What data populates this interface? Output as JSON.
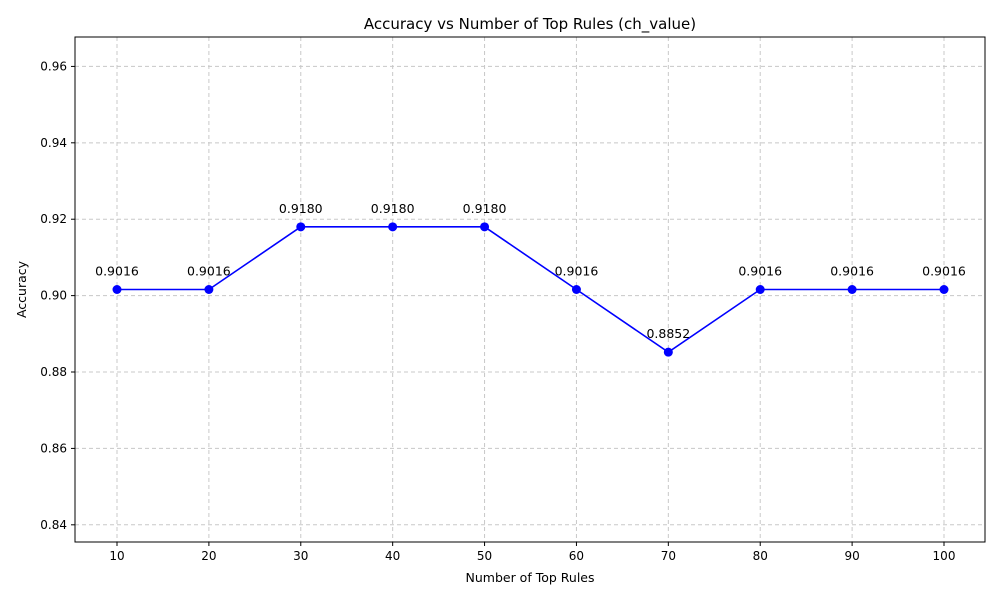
{
  "chart_data": {
    "type": "line",
    "title": "Accuracy vs Number of Top Rules (ch_value)",
    "xlabel": "Number of Top Rules",
    "ylabel": "Accuracy",
    "x": [
      10,
      20,
      30,
      40,
      50,
      60,
      70,
      80,
      90,
      100
    ],
    "x_tick_labels": [
      "10",
      "20",
      "30",
      "40",
      "50",
      "60",
      "70",
      "80",
      "90",
      "100"
    ],
    "y_ticks": [
      0.84,
      0.86,
      0.88,
      0.9,
      0.92,
      0.94,
      0.96
    ],
    "y_tick_labels": [
      "0.84",
      "0.86",
      "0.88",
      "0.90",
      "0.92",
      "0.94",
      "0.96"
    ],
    "ylim": [
      0.8355,
      0.9677
    ],
    "series": [
      {
        "values": [
          0.9016,
          0.9016,
          0.918,
          0.918,
          0.918,
          0.9016,
          0.8852,
          0.9016,
          0.9016,
          0.9016
        ],
        "labels": [
          "0.9016",
          "0.9016",
          "0.9180",
          "0.9180",
          "0.9180",
          "0.9016",
          "0.8852",
          "0.9016",
          "0.9016",
          "0.9016"
        ],
        "color": "#0000ff",
        "marker": "circle"
      }
    ],
    "grid": true,
    "legend": "none"
  }
}
